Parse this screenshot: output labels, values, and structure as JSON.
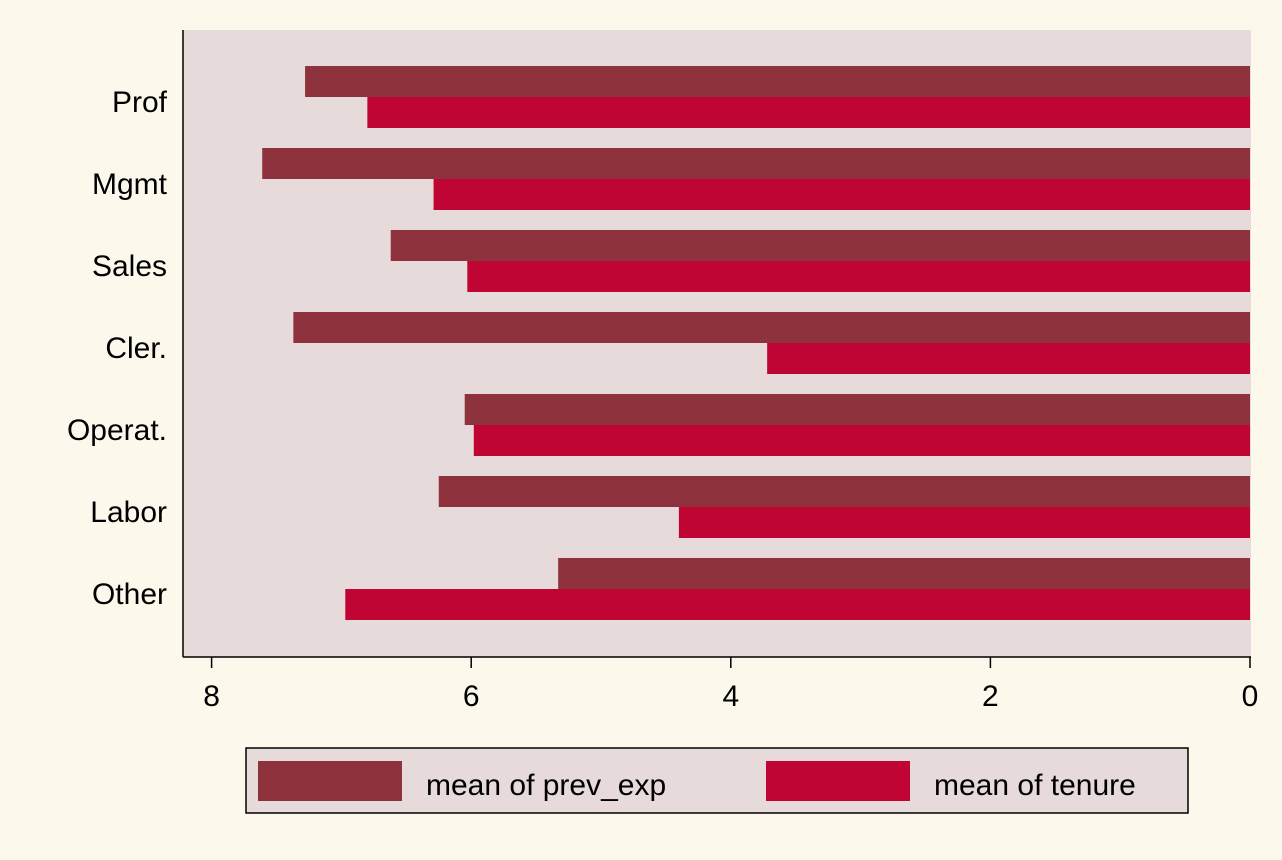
{
  "chart_data": {
    "type": "bar",
    "orientation": "horizontal",
    "x_axis_reversed": true,
    "categories": [
      "Prof",
      "Mgmt",
      "Sales",
      "Cler.",
      "Operat.",
      "Labor",
      "Other"
    ],
    "series": [
      {
        "name": "mean of prev_exp",
        "color": "#8e323d",
        "values": [
          7.28,
          7.61,
          6.62,
          7.37,
          6.05,
          6.25,
          5.33
        ]
      },
      {
        "name": "mean of tenure",
        "color": "#c00535",
        "values": [
          6.8,
          6.29,
          6.03,
          3.72,
          5.98,
          4.4,
          6.97
        ]
      }
    ],
    "xlim": [
      0,
      8.2
    ],
    "x_ticks": [
      8,
      6,
      4,
      2,
      0
    ],
    "title": "",
    "xlabel": "",
    "ylabel": "",
    "grid": false,
    "legend_position": "bottom",
    "colors": {
      "page_background": "#fdf8ec",
      "plot_background": "#e6dada"
    }
  }
}
